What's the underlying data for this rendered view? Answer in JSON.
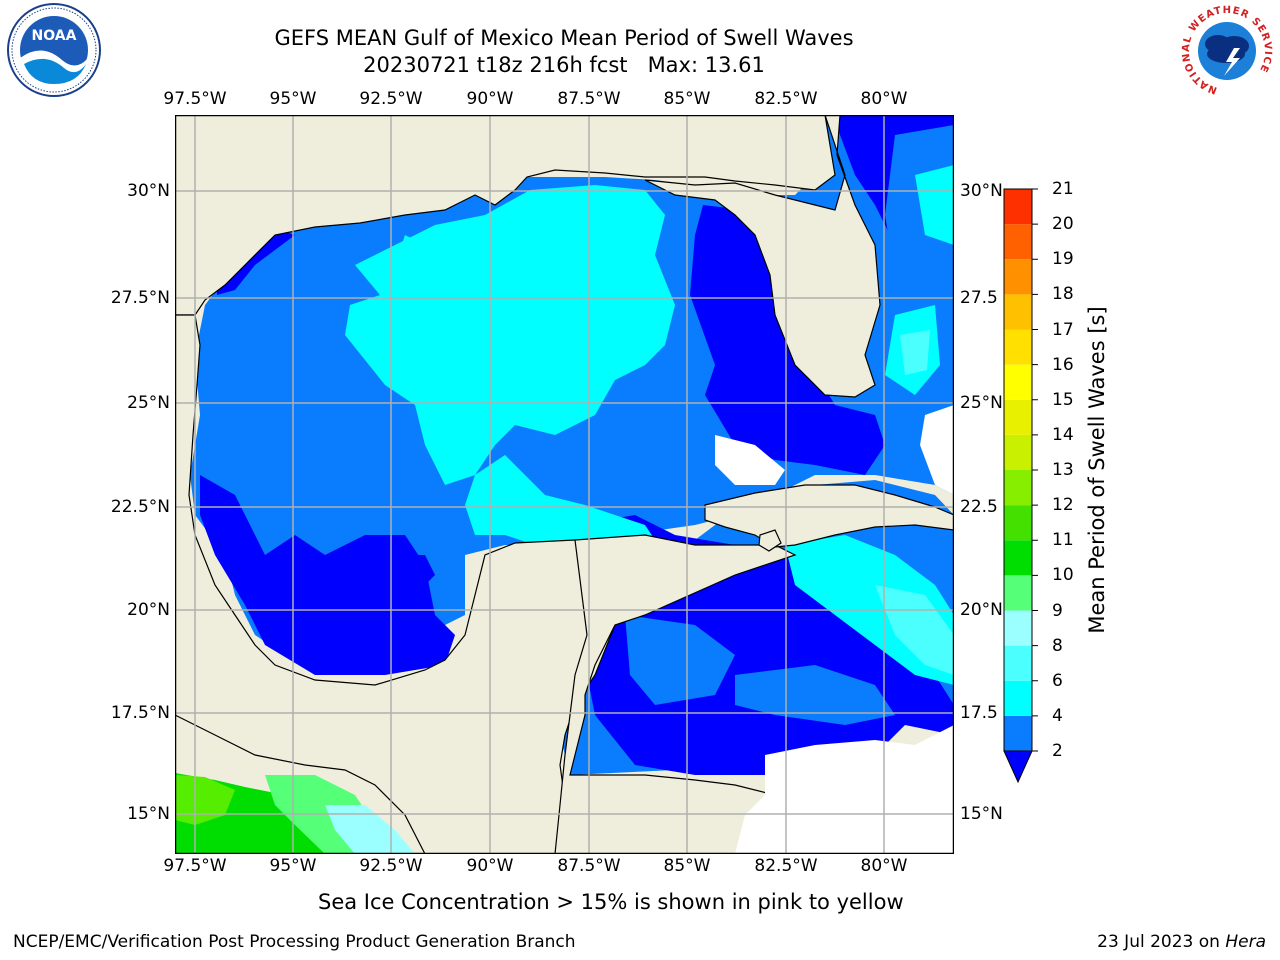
{
  "header": {
    "title_line1": "GEFS MEAN Gulf of Mexico Mean Period of Swell Waves",
    "title_line2": "20230721 t18z 216h fcst   Max: 13.61"
  },
  "logos": {
    "left": {
      "icon": "noaa-logo",
      "text": "NOAA"
    },
    "right": {
      "icon": "nws-logo",
      "ring_text": "NATIONAL WEATHER SERVICE"
    }
  },
  "map": {
    "lon_labels": [
      "97.5°W",
      "95°W",
      "92.5°W",
      "90°W",
      "87.5°W",
      "85°W",
      "82.5°W",
      "80°W"
    ],
    "lat_labels_left": [
      "30°N",
      "27.5°N",
      "25°N",
      "22.5°N",
      "20°N",
      "17.5°N",
      "15°N"
    ],
    "lat_labels_right": [
      "30°N",
      "27.5",
      "25°N",
      "22.5",
      "20°N",
      "17.5",
      "15°N"
    ],
    "lon_range": [
      -98,
      -78.2
    ],
    "lat_range": [
      14.0,
      31.8
    ],
    "colors": {
      "land": "#efeedc",
      "water_2_4_dark": "#0000ff",
      "water_2_4": "#0a7dff",
      "water_4_6": "#00ffff",
      "water_6_8": "#4cffff",
      "water_8_9": "#9cffff",
      "green_9_10": "#55ff77",
      "green_10_11": "#00dd00",
      "green_11_12": "#55ee00",
      "grid": "#b0b0b0"
    }
  },
  "colorbar": {
    "label": "Mean Period of Swell Waves [s]",
    "ticks": [
      "2",
      "4",
      "6",
      "8",
      "9",
      "10",
      "11",
      "12",
      "13",
      "14",
      "15",
      "16",
      "17",
      "18",
      "19",
      "20",
      "21"
    ],
    "colors": [
      "#0a7dff",
      "#00ffff",
      "#4cffff",
      "#9cffff",
      "#55ff77",
      "#00dd00",
      "#44e000",
      "#88ee00",
      "#c8f000",
      "#e8f000",
      "#ffff00",
      "#ffe000",
      "#ffc000",
      "#ff9000",
      "#ff6000",
      "#ff3000"
    ],
    "under_color": "#0000ff"
  },
  "footer": {
    "ice_note": "Sea Ice Concentration > 15% is shown in pink to yellow",
    "left": "NCEP/EMC/Verification Post Processing Product Generation Branch",
    "right_prefix": "23 Jul 2023 on ",
    "right_machine": "Hera"
  }
}
